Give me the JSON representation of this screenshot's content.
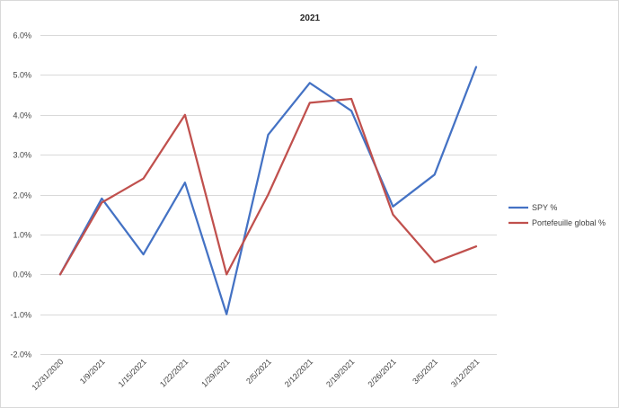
{
  "chart_data": {
    "type": "line",
    "title": "2021",
    "xlabel": "",
    "ylabel": "",
    "categories": [
      "12/31/2020",
      "1/9/2021",
      "1/15/2021",
      "1/22/2021",
      "1/29/2021",
      "2/5/2021",
      "2/12/2021",
      "2/19/2021",
      "2/26/2021",
      "3/5/2021",
      "3/12/2021"
    ],
    "series": [
      {
        "name": "SPY %",
        "color": "#4472C4",
        "values": [
          0.0,
          1.9,
          0.5,
          2.3,
          -1.0,
          3.5,
          4.8,
          4.1,
          1.7,
          2.5,
          5.2
        ]
      },
      {
        "name": "Portefeuille global %",
        "color": "#C0504D",
        "values": [
          0.0,
          1.8,
          2.4,
          4.0,
          0.0,
          2.0,
          4.3,
          4.4,
          1.5,
          0.3,
          0.7
        ]
      }
    ],
    "ylim": [
      -2.0,
      6.0
    ],
    "ytick_values": [
      -2.0,
      -1.0,
      0.0,
      1.0,
      2.0,
      3.0,
      4.0,
      5.0,
      6.0
    ],
    "ytick_labels": [
      "-2.0%",
      "-1.0%",
      "0.0%",
      "1.0%",
      "2.0%",
      "3.0%",
      "4.0%",
      "5.0%",
      "6.0%"
    ],
    "grid": true,
    "legend_position": "right",
    "gridline_color": "#d9d9d9"
  }
}
